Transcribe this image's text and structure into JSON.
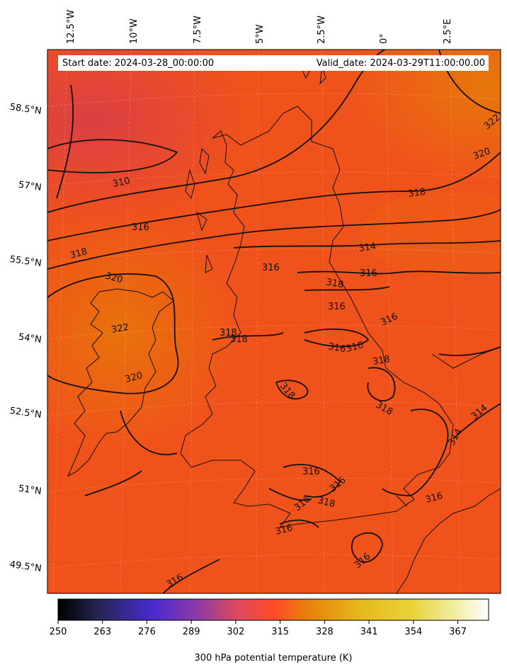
{
  "header": {
    "start_date": "Start date: 2024-03-28_00:00:00",
    "valid_date": "Valid_date: 2024-03-29T11:00:00.00"
  },
  "lon_labels": [
    "12.5°W",
    "10°W",
    "7.5°W",
    "5°W",
    "2.5°W",
    "0°",
    "2.5°E"
  ],
  "lat_labels": [
    "58.5°N",
    "57°N",
    "55.5°N",
    "54°N",
    "52.5°N",
    "51°N",
    "49.5°N"
  ],
  "colorbar": {
    "title": "300 hPa potential temperature (K)",
    "ticks": [
      "250",
      "263",
      "276",
      "289",
      "302",
      "315",
      "328",
      "341",
      "354",
      "367"
    ],
    "min": 250,
    "max": 376,
    "colormap": "CMRmap"
  },
  "contour_labels": [
    "310",
    "316",
    "318",
    "320",
    "322",
    "314",
    "316",
    "318",
    "316",
    "318",
    "316",
    "316",
    "316",
    "316",
    "318",
    "318",
    "318",
    "316",
    "318",
    "316",
    "318",
    "316",
    "316",
    "316",
    "316",
    "320",
    "322",
    "320",
    "318",
    "316",
    "314",
    "314"
  ],
  "colors": {
    "field_base": "#f0501e",
    "warm_region": "#e8700a",
    "cool_region": "#e0443a",
    "coast": "#111111",
    "contour": "#111111"
  }
}
